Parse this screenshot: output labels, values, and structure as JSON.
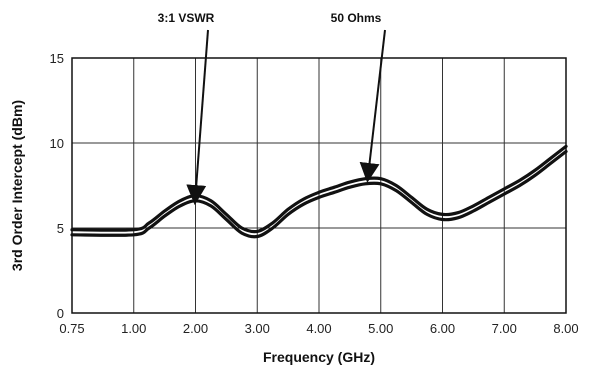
{
  "chart_data": {
    "type": "line",
    "title": "",
    "xlabel": "Frequency (GHz)",
    "ylabel": "3rd Order Intercept (dBm)",
    "x_categories": [
      "0.75",
      "1.00",
      "2.00",
      "3.00",
      "4.00",
      "5.00",
      "6.00",
      "7.00",
      "8.00"
    ],
    "y_ticks": [
      "0",
      "5",
      "10",
      "15"
    ],
    "ylim": [
      0,
      15
    ],
    "grid": true,
    "legend": "none",
    "series": [
      {
        "name": "50 Ohms",
        "x": [
          0.75,
          1.0,
          1.25,
          1.5,
          1.75,
          2.0,
          2.25,
          2.5,
          2.75,
          3.0,
          3.25,
          3.5,
          3.75,
          4.0,
          4.25,
          4.5,
          4.75,
          5.0,
          5.25,
          5.5,
          5.75,
          6.0,
          6.25,
          6.5,
          6.75,
          7.0,
          7.25,
          7.5,
          7.75,
          8.0
        ],
        "y": [
          4.9,
          4.9,
          5.3,
          6.0,
          6.6,
          6.9,
          6.6,
          5.8,
          5.0,
          4.8,
          5.3,
          6.1,
          6.7,
          7.1,
          7.4,
          7.7,
          7.9,
          7.9,
          7.5,
          6.8,
          6.1,
          5.8,
          5.9,
          6.3,
          6.8,
          7.3,
          7.8,
          8.4,
          9.1,
          9.8
        ]
      },
      {
        "name": "3:1 VSWR",
        "x": [
          0.75,
          1.0,
          1.25,
          1.5,
          1.75,
          2.0,
          2.25,
          2.5,
          2.75,
          3.0,
          3.25,
          3.5,
          3.75,
          4.0,
          4.25,
          4.5,
          4.75,
          5.0,
          5.25,
          5.5,
          5.75,
          6.0,
          6.25,
          6.5,
          6.75,
          7.0,
          7.25,
          7.5,
          7.75,
          8.0
        ],
        "y": [
          4.6,
          4.6,
          5.0,
          5.7,
          6.3,
          6.6,
          6.3,
          5.5,
          4.7,
          4.5,
          5.0,
          5.8,
          6.4,
          6.8,
          7.1,
          7.4,
          7.6,
          7.6,
          7.2,
          6.5,
          5.8,
          5.5,
          5.6,
          6.0,
          6.5,
          7.0,
          7.5,
          8.1,
          8.8,
          9.5
        ]
      }
    ],
    "annotations": [
      {
        "text": "3:1 VSWR",
        "points_to_x": 2.0,
        "points_to_y": 6.7
      },
      {
        "text": "50 Ohms",
        "points_to_x": 4.8,
        "points_to_y": 8.0
      }
    ]
  }
}
